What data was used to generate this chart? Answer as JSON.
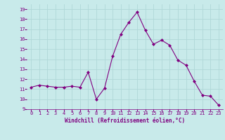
{
  "x": [
    0,
    1,
    2,
    3,
    4,
    5,
    6,
    7,
    8,
    9,
    10,
    11,
    12,
    13,
    14,
    15,
    16,
    17,
    18,
    19,
    20,
    21,
    22,
    23
  ],
  "y": [
    11.2,
    11.4,
    11.3,
    11.2,
    11.2,
    11.3,
    11.2,
    12.7,
    10.0,
    11.1,
    14.3,
    16.5,
    17.7,
    18.7,
    16.9,
    15.5,
    15.9,
    15.4,
    13.9,
    13.4,
    11.8,
    10.4,
    10.3,
    9.4
  ],
  "xlabel": "Windchill (Refroidissement éolien,°C)",
  "ylim": [
    9,
    19.5
  ],
  "yticks": [
    9,
    10,
    11,
    12,
    13,
    14,
    15,
    16,
    17,
    18,
    19
  ],
  "xticks": [
    0,
    1,
    2,
    3,
    4,
    5,
    6,
    7,
    8,
    9,
    10,
    11,
    12,
    13,
    14,
    15,
    16,
    17,
    18,
    19,
    20,
    21,
    22,
    23
  ],
  "line_color": "#800080",
  "marker_color": "#800080",
  "bg_color": "#c8eaea",
  "grid_color": "#b0d8d8",
  "tick_label_color": "#800080",
  "xlabel_color": "#800080",
  "spine_color": "#800080"
}
